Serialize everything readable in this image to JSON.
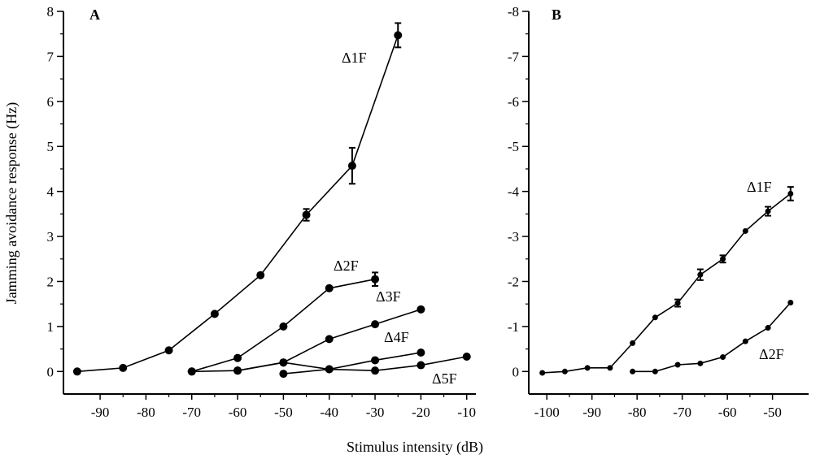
{
  "chart_data": [
    {
      "type": "line",
      "panel_label": "A",
      "ylabel": "Jamming avoidance response (Hz)",
      "xlim": [
        -98,
        -8
      ],
      "ylim": [
        -0.5,
        8
      ],
      "xticks": [
        -90,
        -80,
        -70,
        -60,
        -50,
        -40,
        -30,
        -20,
        -10
      ],
      "xtick_labels": [
        "-90",
        "-80",
        "-70",
        "-60",
        "-50",
        "-40",
        "-30",
        "-20",
        "-10"
      ],
      "yticks": [
        0,
        1,
        2,
        3,
        4,
        5,
        6,
        7,
        8
      ],
      "ytick_labels": [
        "0",
        "1",
        "2",
        "3",
        "4",
        "5",
        "6",
        "7",
        "8"
      ],
      "series": [
        {
          "name": "Δ1F",
          "x": [
            -95,
            -85,
            -75,
            -65,
            -55,
            -45,
            -35,
            -25
          ],
          "y": [
            0.0,
            0.08,
            0.47,
            1.28,
            2.14,
            3.48,
            4.57,
            7.47
          ],
          "err": [
            0,
            0,
            0,
            0,
            0,
            0.13,
            0.4,
            0.27
          ]
        },
        {
          "name": "Δ2F",
          "x": [
            -70,
            -60,
            -50,
            -40,
            -30
          ],
          "y": [
            0.0,
            0.3,
            1.0,
            1.85,
            2.05
          ],
          "err": [
            0,
            0,
            0,
            0,
            0.15
          ]
        },
        {
          "name": "Δ3F",
          "x": [
            -60,
            -50,
            -40,
            -30,
            -20
          ],
          "y": [
            0.02,
            0.2,
            0.72,
            1.05,
            1.38
          ],
          "err": [
            0,
            0,
            0,
            0,
            0
          ]
        },
        {
          "name": "Δ4F",
          "x": [
            -70,
            -60,
            -50,
            -40,
            -30,
            -20
          ],
          "y": [
            0.0,
            0.02,
            0.2,
            0.05,
            0.25,
            0.42
          ],
          "err": [
            0,
            0,
            0,
            0,
            0,
            0
          ]
        },
        {
          "name": "Δ5F",
          "x": [
            -50,
            -40,
            -30,
            -20,
            -10
          ],
          "y": [
            -0.05,
            0.05,
            0.02,
            0.14,
            0.33
          ],
          "err": [
            0,
            0,
            0,
            0,
            0
          ]
        }
      ]
    },
    {
      "type": "line",
      "panel_label": "B",
      "xlim": [
        -104,
        -42
      ],
      "ylim": [
        0.5,
        -8
      ],
      "xticks": [
        -100,
        -90,
        -80,
        -70,
        -60,
        -50
      ],
      "xtick_labels": [
        "-100",
        "-90",
        "-80",
        "-70",
        "-60",
        "-50"
      ],
      "yticks": [
        0,
        -1,
        -2,
        -3,
        -4,
        -5,
        -6,
        -7,
        -8
      ],
      "ytick_labels": [
        "0",
        "-1",
        "-2",
        "-3",
        "-4",
        "-5",
        "-6",
        "-7",
        "-8"
      ],
      "series": [
        {
          "name": "Δ1F",
          "x": [
            -101,
            -96,
            -91,
            -86,
            -81,
            -76,
            -71,
            -66,
            -61,
            -56,
            -51,
            -46
          ],
          "y": [
            0.03,
            0.0,
            -0.08,
            -0.08,
            -0.63,
            -1.2,
            -1.52,
            -2.15,
            -2.5,
            -3.12,
            -3.56,
            -3.95
          ],
          "err": [
            0,
            0,
            0,
            0,
            0,
            0,
            0.08,
            0.12,
            0.08,
            0,
            0.1,
            0.15
          ]
        },
        {
          "name": "Δ2F",
          "x": [
            -81,
            -76,
            -71,
            -66,
            -61,
            -56,
            -51,
            -46
          ],
          "y": [
            0.0,
            0.0,
            -0.15,
            -0.18,
            -0.32,
            -0.67,
            -0.97,
            -1.53
          ],
          "err": [
            0,
            0,
            0,
            0,
            0,
            0,
            0,
            0
          ]
        }
      ]
    }
  ],
  "shared_xlabel": "Stimulus intensity (dB)"
}
